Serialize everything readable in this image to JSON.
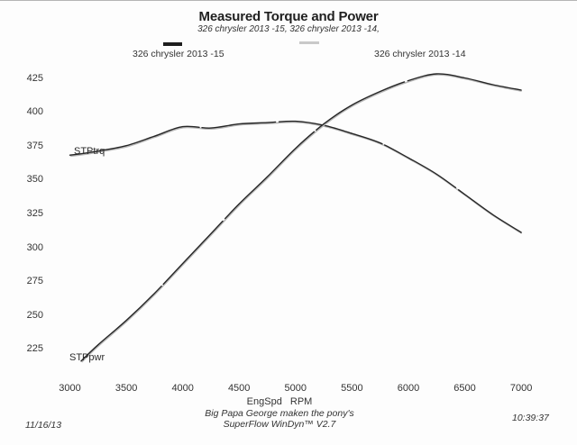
{
  "title": "Measured Torque and Power",
  "subtitle": "326 chrysler 2013 -15, 326 chrysler 2013 -14,",
  "legend": {
    "run15_label": "326 chrysler 2013 -15",
    "run14_label": "326 chrysler 2013 -14"
  },
  "curve_labels": {
    "torque": "STPtrq",
    "power": "STPpwr"
  },
  "axes": {
    "xlabel": "EngSpd RPM",
    "y_ticks": [
      425,
      400,
      375,
      350,
      325,
      300,
      275,
      250,
      225
    ],
    "x_ticks": [
      3000,
      3500,
      4000,
      4500,
      5000,
      5500,
      6000,
      6500,
      7000
    ]
  },
  "footer": {
    "date": "11/16/13",
    "note_line1": "Big Papa George maken the pony's",
    "note_line2": "SuperFlow WinDyn™ V2.7",
    "time": "10:39:37"
  },
  "colors": {
    "run15_line": "#262626",
    "run14_line": "#b8b8b8",
    "text": "#2b2b2b"
  },
  "chart_data": {
    "type": "line",
    "title": "Measured Torque and Power",
    "subtitle": "326 chrysler 2013 -15, 326 chrysler 2013 -14,",
    "xlabel": "EngSpd RPM",
    "xlim": [
      3000,
      7000
    ],
    "ylim": [
      210,
      430
    ],
    "grid": false,
    "legend_position": "top",
    "legend_entries": [
      "326 chrysler 2013 -15",
      "326 chrysler 2013 -14"
    ],
    "x": [
      3000,
      3100,
      3250,
      3500,
      3750,
      4000,
      4250,
      4500,
      4750,
      5000,
      5250,
      5500,
      5750,
      6000,
      6250,
      6500,
      6750,
      7000
    ],
    "series": [
      {
        "name": "STPtrq",
        "values": [
          368,
          369,
          371,
          375,
          382,
          389,
          388,
          391,
          392,
          393,
          390,
          384,
          377,
          366,
          354,
          339,
          324,
          311
        ]
      },
      {
        "name": "STPpwr",
        "values": [
          null,
          216,
          228,
          246,
          266,
          288,
          310,
          332,
          352,
          373,
          391,
          405,
          415,
          423,
          428,
          425,
          420,
          416
        ]
      }
    ],
    "annotations": {
      "torque_peak": {
        "rpm": 5000,
        "value": 393
      },
      "power_peak": {
        "rpm": 6250,
        "value": 428
      },
      "crossover_rpm": 5200
    }
  }
}
